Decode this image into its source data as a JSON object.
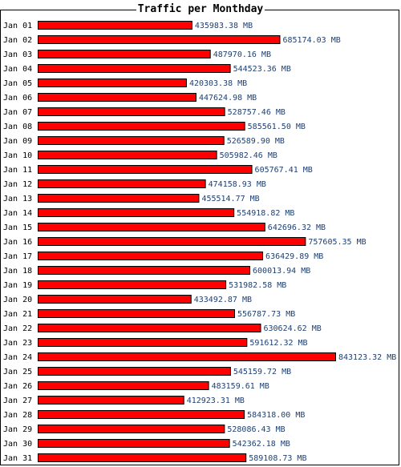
{
  "chart_data": {
    "type": "bar",
    "orientation": "horizontal",
    "title": "Traffic per Monthday",
    "unit": "MB",
    "categories": [
      "Jan 01",
      "Jan 02",
      "Jan 03",
      "Jan 04",
      "Jan 05",
      "Jan 06",
      "Jan 07",
      "Jan 08",
      "Jan 09",
      "Jan 10",
      "Jan 11",
      "Jan 12",
      "Jan 13",
      "Jan 14",
      "Jan 15",
      "Jan 16",
      "Jan 17",
      "Jan 18",
      "Jan 19",
      "Jan 20",
      "Jan 21",
      "Jan 22",
      "Jan 23",
      "Jan 24",
      "Jan 25",
      "Jan 26",
      "Jan 27",
      "Jan 28",
      "Jan 29",
      "Jan 30",
      "Jan 31"
    ],
    "values": [
      435983.38,
      685174.03,
      487970.16,
      544523.36,
      420303.38,
      447624.98,
      528757.46,
      585561.5,
      526589.9,
      505982.46,
      605767.41,
      474158.93,
      455514.77,
      554918.82,
      642696.32,
      757605.35,
      636429.89,
      600013.94,
      531982.58,
      433492.87,
      556787.73,
      630624.62,
      591612.32,
      843123.32,
      545159.72,
      483159.61,
      412923.31,
      584318.0,
      528086.43,
      542362.18,
      589108.73
    ],
    "value_labels": [
      "435983.38 MB",
      "685174.03 MB",
      "487970.16 MB",
      "544523.36 MB",
      "420303.38 MB",
      "447624.98 MB",
      "528757.46 MB",
      "585561.50 MB",
      "526589.90 MB",
      "505982.46 MB",
      "605767.41 MB",
      "474158.93 MB",
      "455514.77 MB",
      "554918.82 MB",
      "642696.32 MB",
      "757605.35 MB",
      "636429.89 MB",
      "600013.94 MB",
      "531982.58 MB",
      "433492.87 MB",
      "556787.73 MB",
      "630624.62 MB",
      "591612.32 MB",
      "843123.32 MB",
      "545159.72 MB",
      "483159.61 MB",
      "412923.31 MB",
      "584318.00 MB",
      "528086.43 MB",
      "542362.18 MB",
      "589108.73 MB"
    ],
    "grid": false,
    "legend": "none",
    "colors": {
      "bar_fill": "#ff0000",
      "bar_stroke": "#000000",
      "value_text": "#1f3f6f",
      "label_text": "#000000"
    }
  }
}
